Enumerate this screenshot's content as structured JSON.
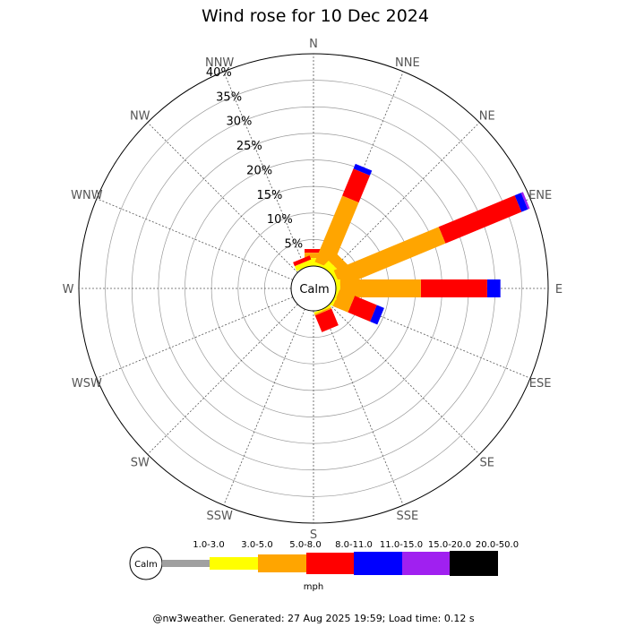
{
  "chart_data": {
    "type": "wind-rose",
    "title": "Wind rose for 10 Dec 2024",
    "directions": [
      "N",
      "NNE",
      "NE",
      "ENE",
      "E",
      "ESE",
      "SE",
      "SSE",
      "S",
      "SSW",
      "SW",
      "WSW",
      "W",
      "WNW",
      "NW",
      "NNW"
    ],
    "radial_ticks": [
      "5%",
      "10%",
      "15%",
      "20%",
      "25%",
      "30%",
      "35%",
      "40%"
    ],
    "radial_max_percent": 40,
    "calm_label": "Calm",
    "unit": "mph",
    "speed_bins": [
      {
        "label": "1.0-3.0",
        "color": "#a0a0a0"
      },
      {
        "label": "3.0-5.0",
        "color": "#ffff00"
      },
      {
        "label": "5.0-8.0",
        "color": "#ffa500"
      },
      {
        "label": "8.0-11.0",
        "color": "#ff0000"
      },
      {
        "label": "11.0-15.0",
        "color": "#0000ff"
      },
      {
        "label": "15.0-20.0",
        "color": "#a020f0"
      },
      {
        "label": "20.0-50.0",
        "color": "#000000"
      }
    ],
    "series": [
      {
        "direction": "N",
        "cumulative_percent": [
          0,
          1.5,
          2.5,
          3.2,
          3.2,
          3.2,
          3.2
        ]
      },
      {
        "direction": "NNE",
        "cumulative_percent": [
          0,
          0.5,
          14.0,
          19.5,
          20.5,
          20.5,
          20.5
        ]
      },
      {
        "direction": "NE",
        "cumulative_percent": [
          0,
          1.5,
          3.5,
          3.5,
          3.5,
          3.5,
          3.5
        ]
      },
      {
        "direction": "ENE",
        "cumulative_percent": [
          0,
          0.6,
          22.0,
          37.5,
          38.8,
          39.2,
          39.2
        ]
      },
      {
        "direction": "E",
        "cumulative_percent": [
          0,
          0.8,
          16.0,
          28.5,
          31.0,
          31.0,
          31.0
        ]
      },
      {
        "direction": "ESE",
        "cumulative_percent": [
          0,
          0.4,
          3.5,
          8.0,
          9.5,
          9.5,
          9.5
        ]
      },
      {
        "direction": "SE",
        "cumulative_percent": [
          0,
          0.3,
          0.3,
          0.3,
          0.3,
          0.3,
          0.3
        ]
      },
      {
        "direction": "SSE",
        "cumulative_percent": [
          0,
          0.3,
          0.6,
          4.0,
          4.0,
          4.0,
          4.0
        ]
      },
      {
        "direction": "S",
        "cumulative_percent": [
          0,
          0,
          0,
          0,
          0,
          0,
          0
        ]
      },
      {
        "direction": "SSW",
        "cumulative_percent": [
          0,
          0,
          0,
          0,
          0,
          0,
          0
        ]
      },
      {
        "direction": "SW",
        "cumulative_percent": [
          0,
          0,
          0,
          0,
          0,
          0,
          0
        ]
      },
      {
        "direction": "WSW",
        "cumulative_percent": [
          0,
          0,
          0,
          0,
          0,
          0,
          0
        ]
      },
      {
        "direction": "W",
        "cumulative_percent": [
          0,
          0,
          0,
          0,
          0,
          0,
          0
        ]
      },
      {
        "direction": "WNW",
        "cumulative_percent": [
          0,
          0,
          0,
          0,
          0,
          0,
          0
        ]
      },
      {
        "direction": "NW",
        "cumulative_percent": [
          0,
          0,
          0,
          0,
          0,
          0,
          0
        ]
      },
      {
        "direction": "NNW",
        "cumulative_percent": [
          0,
          1.0,
          1.0,
          1.8,
          1.8,
          1.8,
          1.8
        ]
      }
    ]
  },
  "footer": "@nw3weather. Generated: 27 Aug 2025 19:59; Load time: 0.12 s"
}
